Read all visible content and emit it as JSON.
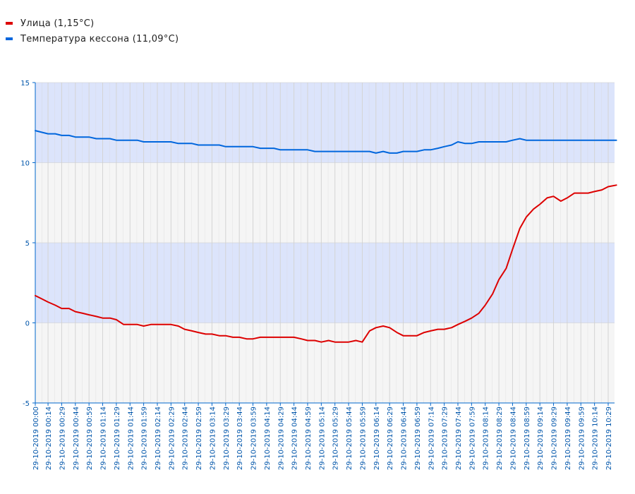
{
  "legend": [
    {
      "label": "Улица (1,15°C)",
      "color": "#dd0000"
    },
    {
      "label": "Температура кессона (11,09°C)",
      "color": "#0066dd"
    }
  ],
  "chart_data": {
    "type": "line",
    "ylim": [
      -5,
      15
    ],
    "yticks": [
      "15",
      "10",
      "5",
      "0",
      "-5"
    ],
    "ytick_values": [
      15,
      10,
      5,
      0,
      -5
    ],
    "band_colors": {
      "blue": "#dce4fb",
      "gray": "#f5f5f5",
      "grid": "#d4d4d4",
      "axis": "#0066cc"
    },
    "x_start": "29-10-2019 00:00",
    "x_end": "29-10-2019 10:38",
    "x_labels": [
      "29-10-2019 00:00",
      "29-10-2019 00:14",
      "29-10-2019 00:29",
      "29-10-2019 00:44",
      "29-10-2019 00:59",
      "29-10-2019 01:14",
      "29-10-2019 01:29",
      "29-10-2019 01:44",
      "29-10-2019 01:59",
      "29-10-2019 02:14",
      "29-10-2019 02:29",
      "29-10-2019 02:44",
      "29-10-2019 02:59",
      "29-10-2019 03:14",
      "29-10-2019 03:29",
      "29-10-2019 03:44",
      "29-10-2019 03:59",
      "29-10-2019 04:14",
      "29-10-2019 04:29",
      "29-10-2019 04:44",
      "29-10-2019 04:59",
      "29-10-2019 05:14",
      "29-10-2019 05:29",
      "29-10-2019 05:44",
      "29-10-2019 05:59",
      "29-10-2019 06:14",
      "29-10-2019 06:29",
      "29-10-2019 06:44",
      "29-10-2019 06:59",
      "29-10-2019 07:14",
      "29-10-2019 07:29",
      "29-10-2019 07:44",
      "29-10-2019 07:59",
      "29-10-2019 08:14",
      "29-10-2019 08:29",
      "29-10-2019 08:44",
      "29-10-2019 08:59",
      "29-10-2019 09:14",
      "29-10-2019 09:29",
      "29-10-2019 09:44",
      "29-10-2019 09:59",
      "29-10-2019 10:14",
      "29-10-2019 10:29"
    ],
    "series": [
      {
        "name": "Улица (1,15°C)",
        "color": "#dd0000",
        "x": [
          "29-10-2019 00:00",
          "29-10-2019 00:07",
          "29-10-2019 00:14",
          "29-10-2019 00:22",
          "29-10-2019 00:29",
          "29-10-2019 00:37",
          "29-10-2019 00:44",
          "29-10-2019 00:52",
          "29-10-2019 00:59",
          "29-10-2019 01:07",
          "29-10-2019 01:14",
          "29-10-2019 01:22",
          "29-10-2019 01:29",
          "29-10-2019 01:37",
          "29-10-2019 01:44",
          "29-10-2019 01:52",
          "29-10-2019 01:59",
          "29-10-2019 02:07",
          "29-10-2019 02:14",
          "29-10-2019 02:22",
          "29-10-2019 02:29",
          "29-10-2019 02:37",
          "29-10-2019 02:44",
          "29-10-2019 02:52",
          "29-10-2019 02:59",
          "29-10-2019 03:07",
          "29-10-2019 03:14",
          "29-10-2019 03:22",
          "29-10-2019 03:29",
          "29-10-2019 03:37",
          "29-10-2019 03:44",
          "29-10-2019 03:52",
          "29-10-2019 03:59",
          "29-10-2019 04:07",
          "29-10-2019 04:14",
          "29-10-2019 04:22",
          "29-10-2019 04:29",
          "29-10-2019 04:37",
          "29-10-2019 04:44",
          "29-10-2019 04:52",
          "29-10-2019 04:59",
          "29-10-2019 05:07",
          "29-10-2019 05:14",
          "29-10-2019 05:22",
          "29-10-2019 05:29",
          "29-10-2019 05:37",
          "29-10-2019 05:44",
          "29-10-2019 05:52",
          "29-10-2019 05:59",
          "29-10-2019 06:07",
          "29-10-2019 06:14",
          "29-10-2019 06:22",
          "29-10-2019 06:29",
          "29-10-2019 06:37",
          "29-10-2019 06:44",
          "29-10-2019 06:52",
          "29-10-2019 06:59",
          "29-10-2019 07:07",
          "29-10-2019 07:14",
          "29-10-2019 07:22",
          "29-10-2019 07:29",
          "29-10-2019 07:37",
          "29-10-2019 07:44",
          "29-10-2019 07:52",
          "29-10-2019 07:59",
          "29-10-2019 08:07",
          "29-10-2019 08:14",
          "29-10-2019 08:22",
          "29-10-2019 08:29",
          "29-10-2019 08:37",
          "29-10-2019 08:44",
          "29-10-2019 08:52",
          "29-10-2019 08:59",
          "29-10-2019 09:07",
          "29-10-2019 09:14",
          "29-10-2019 09:22",
          "29-10-2019 09:29",
          "29-10-2019 09:37",
          "29-10-2019 09:44",
          "29-10-2019 09:52",
          "29-10-2019 09:59",
          "29-10-2019 10:07",
          "29-10-2019 10:14",
          "29-10-2019 10:22",
          "29-10-2019 10:29",
          "29-10-2019 10:38"
        ],
        "values": [
          1.7,
          1.5,
          1.3,
          1.1,
          0.9,
          0.9,
          0.7,
          0.6,
          0.5,
          0.4,
          0.3,
          0.3,
          0.2,
          -0.1,
          -0.1,
          -0.1,
          -0.2,
          -0.1,
          -0.1,
          -0.1,
          -0.1,
          -0.2,
          -0.4,
          -0.5,
          -0.6,
          -0.7,
          -0.7,
          -0.8,
          -0.8,
          -0.9,
          -0.9,
          -1.0,
          -1.0,
          -0.9,
          -0.9,
          -0.9,
          -0.9,
          -0.9,
          -0.9,
          -1.0,
          -1.1,
          -1.1,
          -1.2,
          -1.1,
          -1.2,
          -1.2,
          -1.2,
          -1.1,
          -1.2,
          -0.5,
          -0.3,
          -0.2,
          -0.3,
          -0.6,
          -0.8,
          -0.8,
          -0.8,
          -0.6,
          -0.5,
          -0.4,
          -0.4,
          -0.3,
          -0.1,
          0.1,
          0.3,
          0.6,
          1.1,
          1.8,
          2.7,
          3.4,
          4.6,
          5.9,
          6.6,
          7.1,
          7.4,
          7.8,
          7.9,
          7.6,
          7.8,
          8.1,
          8.1,
          8.1,
          8.2,
          8.3,
          8.5,
          8.6
        ]
      },
      {
        "name": "Температура кессона (11,09°C)",
        "color": "#0066dd",
        "x": [
          "29-10-2019 00:00",
          "29-10-2019 00:07",
          "29-10-2019 00:14",
          "29-10-2019 00:22",
          "29-10-2019 00:29",
          "29-10-2019 00:37",
          "29-10-2019 00:44",
          "29-10-2019 00:52",
          "29-10-2019 00:59",
          "29-10-2019 01:07",
          "29-10-2019 01:14",
          "29-10-2019 01:22",
          "29-10-2019 01:29",
          "29-10-2019 01:37",
          "29-10-2019 01:44",
          "29-10-2019 01:52",
          "29-10-2019 01:59",
          "29-10-2019 02:07",
          "29-10-2019 02:14",
          "29-10-2019 02:22",
          "29-10-2019 02:29",
          "29-10-2019 02:37",
          "29-10-2019 02:44",
          "29-10-2019 02:52",
          "29-10-2019 02:59",
          "29-10-2019 03:07",
          "29-10-2019 03:14",
          "29-10-2019 03:22",
          "29-10-2019 03:29",
          "29-10-2019 03:37",
          "29-10-2019 03:44",
          "29-10-2019 03:52",
          "29-10-2019 03:59",
          "29-10-2019 04:07",
          "29-10-2019 04:14",
          "29-10-2019 04:22",
          "29-10-2019 04:29",
          "29-10-2019 04:37",
          "29-10-2019 04:44",
          "29-10-2019 04:52",
          "29-10-2019 04:59",
          "29-10-2019 05:07",
          "29-10-2019 05:14",
          "29-10-2019 05:22",
          "29-10-2019 05:29",
          "29-10-2019 05:37",
          "29-10-2019 05:44",
          "29-10-2019 05:52",
          "29-10-2019 05:59",
          "29-10-2019 06:07",
          "29-10-2019 06:14",
          "29-10-2019 06:22",
          "29-10-2019 06:29",
          "29-10-2019 06:37",
          "29-10-2019 06:44",
          "29-10-2019 06:52",
          "29-10-2019 06:59",
          "29-10-2019 07:07",
          "29-10-2019 07:14",
          "29-10-2019 07:22",
          "29-10-2019 07:29",
          "29-10-2019 07:37",
          "29-10-2019 07:44",
          "29-10-2019 07:52",
          "29-10-2019 07:59",
          "29-10-2019 08:07",
          "29-10-2019 08:14",
          "29-10-2019 08:22",
          "29-10-2019 08:29",
          "29-10-2019 08:37",
          "29-10-2019 08:44",
          "29-10-2019 08:52",
          "29-10-2019 08:59",
          "29-10-2019 09:07",
          "29-10-2019 09:14",
          "29-10-2019 09:22",
          "29-10-2019 09:29",
          "29-10-2019 09:37",
          "29-10-2019 09:44",
          "29-10-2019 09:52",
          "29-10-2019 09:59",
          "29-10-2019 10:07",
          "29-10-2019 10:14",
          "29-10-2019 10:22",
          "29-10-2019 10:29",
          "29-10-2019 10:38"
        ],
        "values": [
          12.0,
          11.9,
          11.8,
          11.8,
          11.7,
          11.7,
          11.6,
          11.6,
          11.6,
          11.5,
          11.5,
          11.5,
          11.4,
          11.4,
          11.4,
          11.4,
          11.3,
          11.3,
          11.3,
          11.3,
          11.3,
          11.2,
          11.2,
          11.2,
          11.1,
          11.1,
          11.1,
          11.1,
          11.0,
          11.0,
          11.0,
          11.0,
          11.0,
          10.9,
          10.9,
          10.9,
          10.8,
          10.8,
          10.8,
          10.8,
          10.8,
          10.7,
          10.7,
          10.7,
          10.7,
          10.7,
          10.7,
          10.7,
          10.7,
          10.7,
          10.6,
          10.7,
          10.6,
          10.6,
          10.7,
          10.7,
          10.7,
          10.8,
          10.8,
          10.9,
          11.0,
          11.1,
          11.3,
          11.2,
          11.2,
          11.3,
          11.3,
          11.3,
          11.3,
          11.3,
          11.4,
          11.5,
          11.4,
          11.4,
          11.4,
          11.4,
          11.4,
          11.4,
          11.4,
          11.4,
          11.4,
          11.4,
          11.4,
          11.4,
          11.4,
          11.4
        ]
      }
    ]
  }
}
